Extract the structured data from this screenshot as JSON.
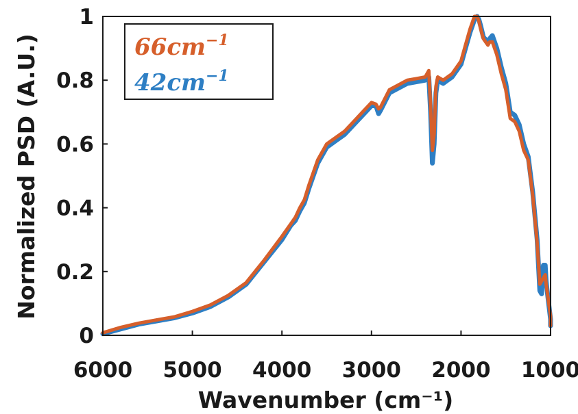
{
  "chart_data": {
    "type": "line",
    "xlabel": "Wavenumber (cm⁻¹)",
    "ylabel": "Normalized PSD (A.U.)",
    "xlim": [
      6000,
      1000
    ],
    "ylim": [
      0,
      1
    ],
    "x_reversed": true,
    "x_ticks": [
      "6000",
      "5000",
      "4000",
      "3000",
      "2000",
      "1000"
    ],
    "y_ticks": [
      "0",
      "0.2",
      "0.4",
      "0.6",
      "0.8",
      "1"
    ],
    "grid": false,
    "legend_position": "top-left",
    "series": [
      {
        "name": "42cm",
        "name_superscript": "−1",
        "color": "#2e7fc4",
        "x": [
          6000,
          5800,
          5600,
          5400,
          5200,
          5000,
          4800,
          4600,
          4400,
          4200,
          4000,
          3900,
          3850,
          3800,
          3750,
          3700,
          3600,
          3500,
          3400,
          3300,
          3200,
          3100,
          3000,
          2950,
          2920,
          2900,
          2800,
          2700,
          2600,
          2500,
          2400,
          2360,
          2340,
          2320,
          2300,
          2280,
          2260,
          2200,
          2150,
          2100,
          2000,
          1950,
          1900,
          1850,
          1820,
          1800,
          1780,
          1750,
          1700,
          1680,
          1650,
          1600,
          1550,
          1500,
          1450,
          1400,
          1350,
          1300,
          1250,
          1200,
          1150,
          1120,
          1100,
          1080,
          1060,
          1050,
          1030,
          1000,
          960
        ],
        "y": [
          0.005,
          0.02,
          0.035,
          0.045,
          0.055,
          0.07,
          0.09,
          0.12,
          0.16,
          0.23,
          0.3,
          0.345,
          0.36,
          0.39,
          0.415,
          0.46,
          0.54,
          0.59,
          0.61,
          0.63,
          0.66,
          0.69,
          0.72,
          0.72,
          0.695,
          0.705,
          0.76,
          0.775,
          0.79,
          0.795,
          0.8,
          0.81,
          0.7,
          0.54,
          0.6,
          0.76,
          0.8,
          0.79,
          0.8,
          0.81,
          0.85,
          0.9,
          0.95,
          0.99,
          1.0,
          0.99,
          0.97,
          0.935,
          0.92,
          0.93,
          0.94,
          0.9,
          0.84,
          0.79,
          0.7,
          0.69,
          0.66,
          0.6,
          0.56,
          0.45,
          0.3,
          0.14,
          0.13,
          0.22,
          0.22,
          0.17,
          0.12,
          0.05,
          0.03
        ]
      },
      {
        "name": "66cm",
        "name_superscript": "−1",
        "color": "#d65f2b",
        "x": [
          6000,
          5800,
          5600,
          5400,
          5200,
          5000,
          4800,
          4600,
          4400,
          4200,
          4000,
          3900,
          3850,
          3800,
          3750,
          3700,
          3600,
          3500,
          3400,
          3300,
          3200,
          3100,
          3000,
          2950,
          2920,
          2900,
          2800,
          2700,
          2600,
          2500,
          2400,
          2360,
          2340,
          2320,
          2300,
          2280,
          2260,
          2200,
          2150,
          2100,
          2000,
          1950,
          1900,
          1850,
          1820,
          1800,
          1780,
          1750,
          1700,
          1680,
          1650,
          1600,
          1550,
          1500,
          1450,
          1400,
          1350,
          1300,
          1250,
          1200,
          1150,
          1120,
          1100,
          1080,
          1060,
          1050,
          1030,
          1000,
          960
        ],
        "y": [
          0.008,
          0.025,
          0.038,
          0.048,
          0.058,
          0.075,
          0.095,
          0.125,
          0.165,
          0.235,
          0.31,
          0.35,
          0.37,
          0.4,
          0.425,
          0.47,
          0.55,
          0.6,
          0.62,
          0.64,
          0.67,
          0.7,
          0.73,
          0.725,
          0.71,
          0.715,
          0.77,
          0.785,
          0.8,
          0.805,
          0.81,
          0.83,
          0.72,
          0.58,
          0.63,
          0.78,
          0.81,
          0.8,
          0.81,
          0.82,
          0.86,
          0.91,
          0.96,
          1.0,
          1.0,
          0.985,
          0.96,
          0.93,
          0.91,
          0.92,
          0.92,
          0.88,
          0.82,
          0.77,
          0.68,
          0.67,
          0.64,
          0.58,
          0.55,
          0.44,
          0.29,
          0.16,
          0.17,
          0.18,
          0.19,
          0.16,
          0.12,
          0.06,
          0.03
        ]
      }
    ]
  }
}
